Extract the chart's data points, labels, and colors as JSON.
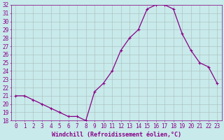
{
  "x": [
    0,
    1,
    2,
    3,
    4,
    5,
    6,
    7,
    8,
    9,
    10,
    11,
    12,
    13,
    14,
    15,
    16,
    17,
    18,
    19,
    20,
    21,
    22,
    23
  ],
  "y": [
    21.0,
    21.0,
    20.5,
    20.0,
    19.5,
    19.0,
    18.5,
    18.5,
    18.0,
    21.5,
    22.5,
    24.0,
    26.5,
    28.0,
    29.0,
    31.5,
    32.0,
    32.0,
    31.5,
    28.5,
    26.5,
    25.0,
    24.5,
    22.5
  ],
  "xlabel": "Windchill (Refroidissement éolien,°C)",
  "ylim": [
    18,
    32
  ],
  "xlim": [
    -0.5,
    23.5
  ],
  "yticks": [
    18,
    19,
    20,
    21,
    22,
    23,
    24,
    25,
    26,
    27,
    28,
    29,
    30,
    31,
    32
  ],
  "xticks": [
    0,
    1,
    2,
    3,
    4,
    5,
    6,
    7,
    8,
    9,
    10,
    11,
    12,
    13,
    14,
    15,
    16,
    17,
    18,
    19,
    20,
    21,
    22,
    23
  ],
  "line_color": "#880088",
  "marker": "+",
  "marker_size": 3.5,
  "bg_color": "#c8eaea",
  "grid_color": "#aabbbb",
  "font_color": "#880088",
  "font_family": "monospace",
  "tick_fontsize": 5.5,
  "xlabel_fontsize": 6.0
}
